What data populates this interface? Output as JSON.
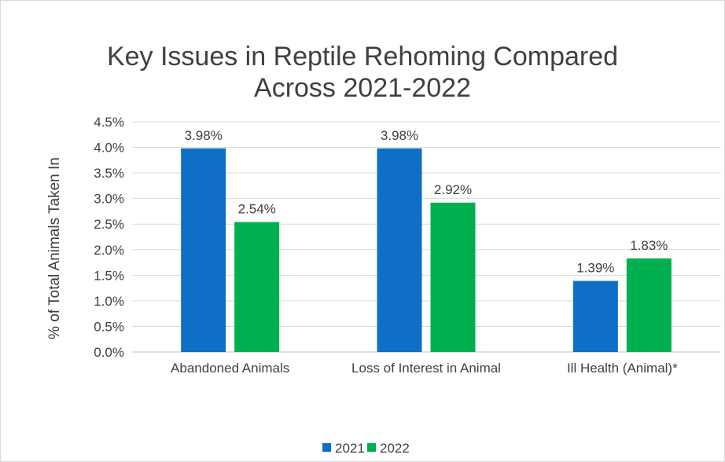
{
  "chart_data": {
    "type": "bar",
    "title_lines": [
      "Key Issues in Reptile Rehoming Compared",
      "Across 2021-2022"
    ],
    "xlabel": "",
    "ylabel": "% of Total Animals Taken In",
    "categories": [
      "Abandoned Animals",
      "Loss of Interest in Animal",
      "Ill Health (Animal)*"
    ],
    "series": [
      {
        "name": "2021",
        "color": "#0f6fc6",
        "values": [
          3.98,
          3.98,
          1.39
        ],
        "labels": [
          "3.98%",
          "3.98%",
          "1.39%"
        ]
      },
      {
        "name": "2022",
        "color": "#00b050",
        "values": [
          2.54,
          2.92,
          1.83
        ],
        "labels": [
          "2.54%",
          "2.92%",
          "1.83%"
        ]
      }
    ],
    "ylim": [
      0,
      4.5
    ],
    "ytick_step": 0.5,
    "ytick_labels": [
      "0.0%",
      "0.5%",
      "1.0%",
      "1.5%",
      "2.0%",
      "2.5%",
      "3.0%",
      "3.5%",
      "4.0%",
      "4.5%"
    ],
    "grid": true,
    "legend": "bottom"
  }
}
